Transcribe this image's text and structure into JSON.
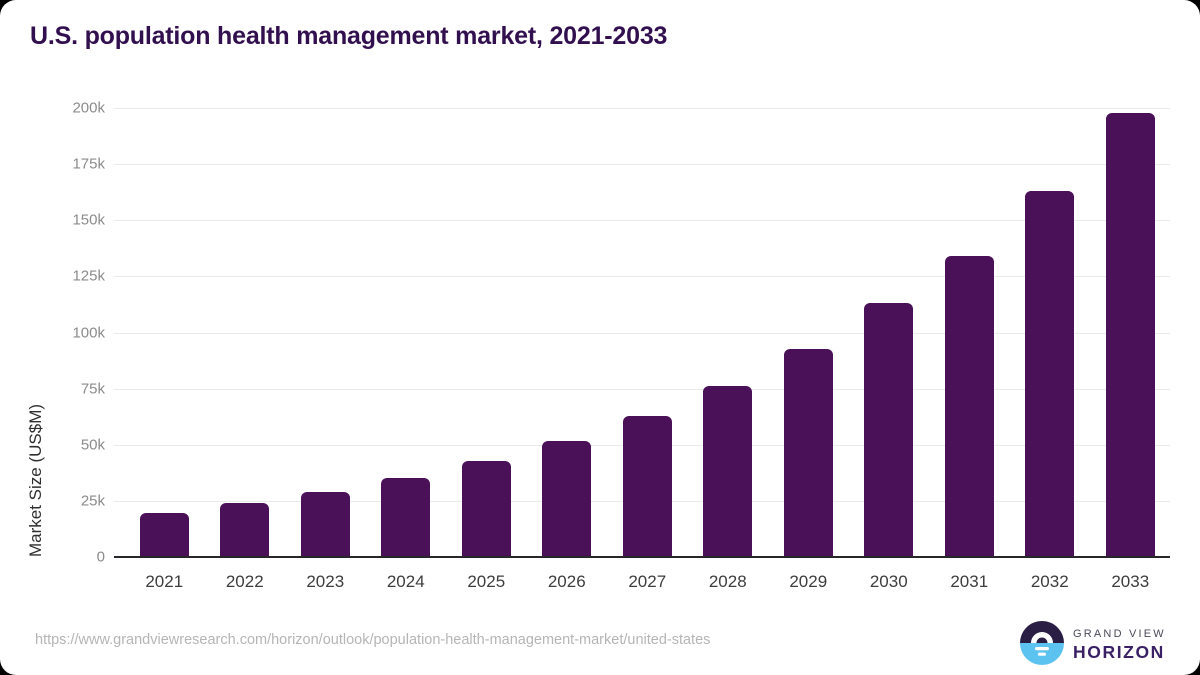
{
  "header": {
    "title": "U.S. population health management market, 2021-2033"
  },
  "chart_data": {
    "type": "bar",
    "title": "U.S. population health management market, 2021-2033",
    "categories": [
      "2021",
      "2022",
      "2023",
      "2024",
      "2025",
      "2026",
      "2027",
      "2028",
      "2029",
      "2030",
      "2031",
      "2032",
      "2033"
    ],
    "values": [
      19600,
      24100,
      28900,
      35100,
      42900,
      51800,
      62900,
      76300,
      92700,
      113000,
      134100,
      163100,
      197900
    ],
    "xlabel": "",
    "ylabel": "Market Size (US$M)",
    "ylim": [
      0,
      200000
    ],
    "ytick_step": 25000,
    "ytick_labels": [
      "0",
      "25k",
      "50k",
      "75k",
      "100k",
      "125k",
      "150k",
      "175k",
      "200k"
    ],
    "grid": true,
    "legend_position": "none",
    "bar_color": "#4a1158"
  },
  "colors": {
    "title": "#321050",
    "bar": "#4a1158",
    "gridline": "#eaeaea",
    "axis_line": "#26262b",
    "ytick_text": "#8b8b8b",
    "xtick_text": "#3d3d3d",
    "url_text": "#b5b5b5",
    "logo_dark": "#2b1e45",
    "logo_blue": "#5cc3f0"
  },
  "footer": {
    "source_url": "https://www.grandviewresearch.com/horizon/outlook/population-health-management-market/united-states",
    "logo": {
      "icon": "horizon-sun-icon",
      "top_text": "GRAND VIEW",
      "bottom_text": "HORIZON"
    }
  }
}
